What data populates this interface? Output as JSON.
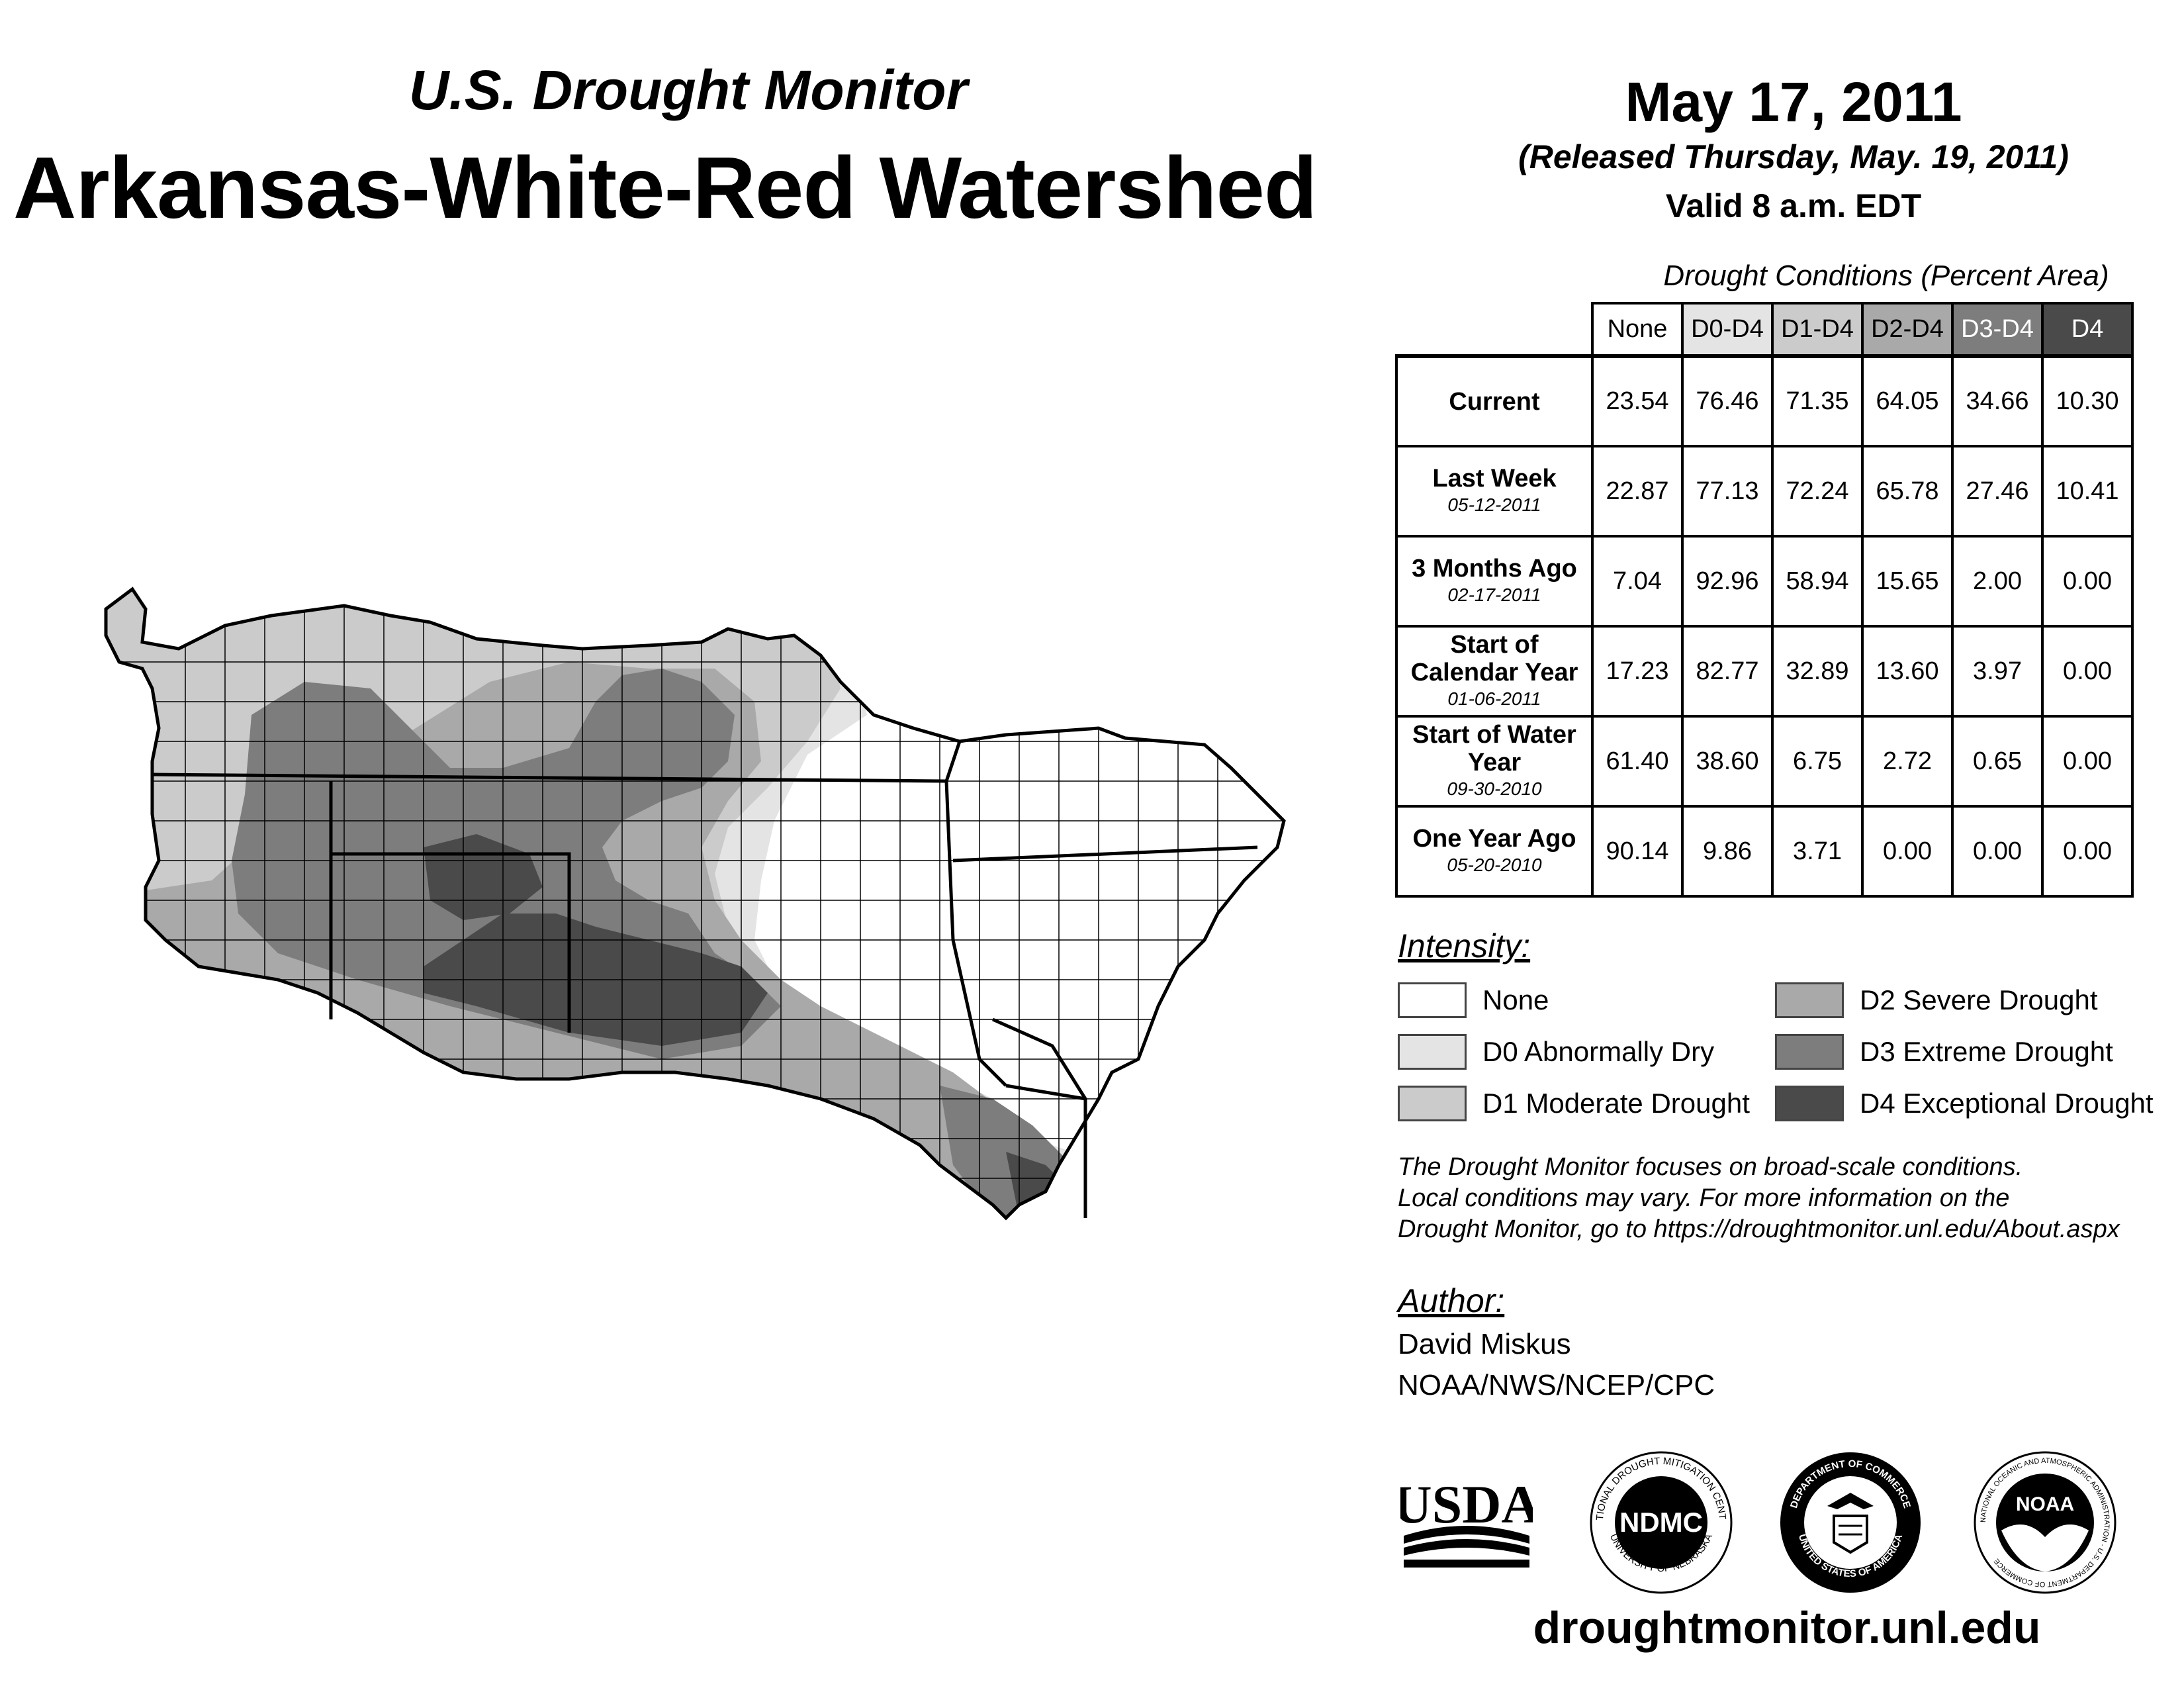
{
  "header": {
    "subtitle": "U.S. Drought Monitor",
    "title": "Arkansas-White-Red Watershed",
    "date": "May 17, 2011",
    "released": "(Released Thursday, May. 19, 2011)",
    "valid": "Valid 8 a.m. EDT"
  },
  "table": {
    "caption": "Drought Conditions (Percent Area)",
    "columns": [
      "None",
      "D0-D4",
      "D1-D4",
      "D2-D4",
      "D3-D4",
      "D4"
    ],
    "rows": [
      {
        "label": "Current",
        "date": "",
        "values": [
          "23.54",
          "76.46",
          "71.35",
          "64.05",
          "34.66",
          "10.30"
        ]
      },
      {
        "label": "Last Week",
        "date": "05-12-2011",
        "values": [
          "22.87",
          "77.13",
          "72.24",
          "65.78",
          "27.46",
          "10.41"
        ]
      },
      {
        "label": "3 Months Ago",
        "date": "02-17-2011",
        "values": [
          "7.04",
          "92.96",
          "58.94",
          "15.65",
          "2.00",
          "0.00"
        ]
      },
      {
        "label": "Start of Calendar Year",
        "date": "01-06-2011",
        "values": [
          "17.23",
          "82.77",
          "32.89",
          "13.60",
          "3.97",
          "0.00"
        ]
      },
      {
        "label": "Start of Water Year",
        "date": "09-30-2010",
        "values": [
          "61.40",
          "38.60",
          "6.75",
          "2.72",
          "0.65",
          "0.00"
        ]
      },
      {
        "label": "One Year Ago",
        "date": "05-20-2010",
        "values": [
          "90.14",
          "9.86",
          "3.71",
          "0.00",
          "0.00",
          "0.00"
        ]
      }
    ]
  },
  "legend": {
    "title": "Intensity:",
    "items": [
      {
        "label": "None",
        "color": "#ffffff"
      },
      {
        "label": "D0 Abnormally Dry",
        "color": "#e4e4e4"
      },
      {
        "label": "D1 Moderate Drought",
        "color": "#cbcbcb"
      },
      {
        "label": "D2 Severe Drought",
        "color": "#a9a9a9"
      },
      {
        "label": "D3 Extreme Drought",
        "color": "#7d7d7d"
      },
      {
        "label": "D4 Exceptional Drought",
        "color": "#4a4a4a"
      }
    ]
  },
  "disclaimer": {
    "line1": "The Drought Monitor focuses on broad-scale conditions.",
    "line2": "Local conditions may vary. For more information on the",
    "line3": "Drought Monitor, go to https://droughtmonitor.unl.edu/About.aspx"
  },
  "author": {
    "title": "Author:",
    "name": "David Miskus",
    "org": "NOAA/NWS/NCEP/CPC"
  },
  "logos": {
    "usda": "USDA",
    "ndmc": "NDMC",
    "ndmc_top": "NATIONAL DROUGHT MITIGATION CENTER",
    "ndmc_bottom": "UNIVERSITY OF NEBRASKA",
    "doc_top": "DEPARTMENT OF COMMERCE",
    "doc_bottom": "UNITED STATES OF AMERICA",
    "noaa": "NOAA",
    "noaa_ring": "NATIONAL OCEANIC AND ATMOSPHERIC ADMINISTRATION · U.S. DEPARTMENT OF COMMERCE"
  },
  "footer": {
    "website": "droughtmonitor.unl.edu"
  }
}
